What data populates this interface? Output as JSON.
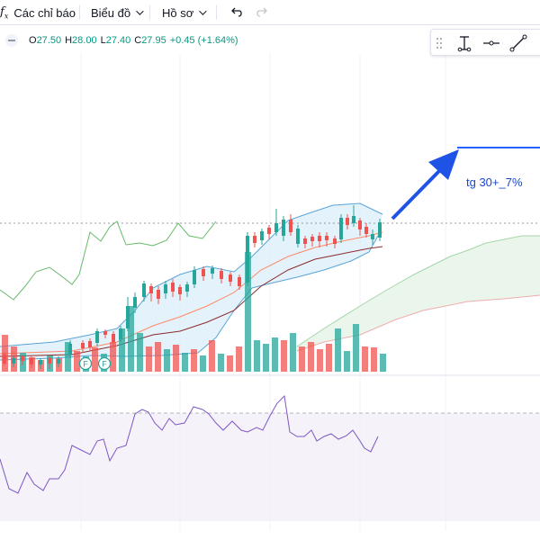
{
  "toolbar": {
    "indicators_label": "Các chỉ báo",
    "chart_label": "Biểu đồ",
    "profile_label": "Hồ sơ"
  },
  "legend": {
    "open_key": "O",
    "open_val": "27.50",
    "high_key": "H",
    "high_val": "28.00",
    "low_key": "L",
    "low_val": "27.40",
    "close_key": "C",
    "close_val": "27.95",
    "change": "+0.45 (+1.64%)"
  },
  "annotation": {
    "text": "tg 30+_7%"
  },
  "markers": {
    "label": "F"
  },
  "colors": {
    "up": "#26a69a",
    "down": "#ef5350",
    "bb": "#2962ff",
    "rsi": "#7e57c2",
    "arrow": "#1e53e5"
  },
  "icons": [
    "fx-icon",
    "chevron-down-icon",
    "undo-icon",
    "redo-icon",
    "drag-handle-icon",
    "text-cursor-icon",
    "horizontal-line-icon",
    "trend-line-icon"
  ]
}
